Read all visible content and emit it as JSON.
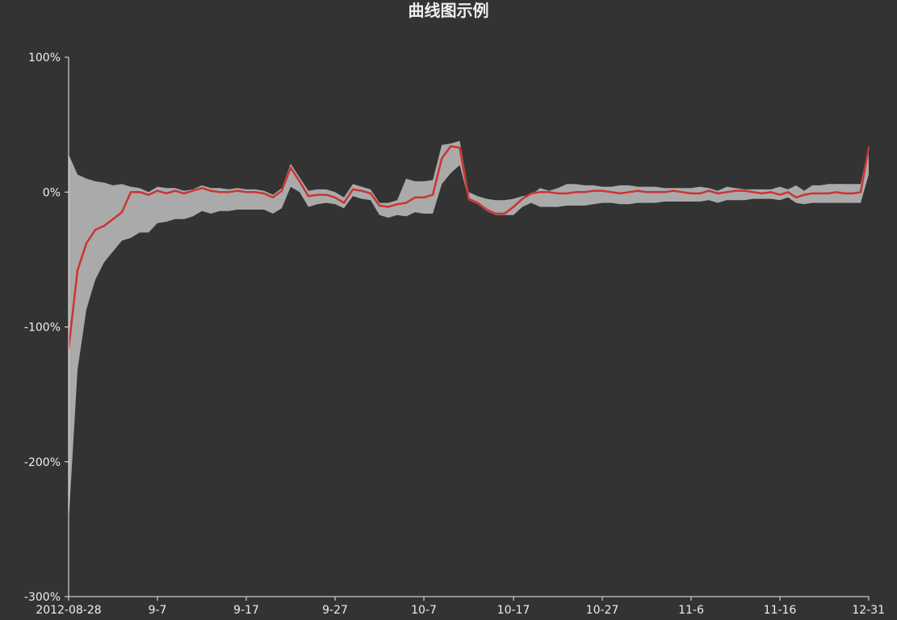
{
  "chart_data": {
    "type": "line",
    "title": "曲线图示例",
    "xlabel": "",
    "ylabel": "",
    "ylim": [
      -300,
      100
    ],
    "y_ticks": [
      100,
      0,
      -100,
      -200,
      -300
    ],
    "y_tick_labels": [
      "100%",
      "0%",
      "-100%",
      "-200%",
      "-300%"
    ],
    "x_range": [
      "2012-08-28",
      "2012-12-31"
    ],
    "x_ticks": [
      "2012-08-28",
      "2012-09-07",
      "2012-09-17",
      "2012-09-27",
      "2012-10-07",
      "2012-10-17",
      "2012-10-27",
      "2012-11-06",
      "2012-11-16",
      "2012-12-31"
    ],
    "x_tick_labels": [
      "2012-08-28",
      "9-7",
      "9-17",
      "9-27",
      "10-7",
      "10-17",
      "10-27",
      "11-6",
      "11-16",
      "12-31"
    ],
    "grid": false,
    "colors": {
      "background": "#333333",
      "line": "#cc3333",
      "band": "#aaaaaa",
      "axis": "#eeeeee",
      "text": "#eeeeee"
    },
    "series": [
      {
        "x": [
          "2012-08-28",
          "2012-08-29",
          "2012-08-30",
          "2012-08-31",
          "2012-09-01",
          "2012-09-02",
          "2012-09-03",
          "2012-09-04",
          "2012-09-05",
          "2012-09-06",
          "2012-09-07",
          "2012-09-08",
          "2012-09-09",
          "2012-09-10",
          "2012-09-11",
          "2012-09-12",
          "2012-09-13",
          "2012-09-14",
          "2012-09-15",
          "2012-09-16",
          "2012-09-17",
          "2012-09-18",
          "2012-09-19",
          "2012-09-20",
          "2012-09-21",
          "2012-09-22",
          "2012-09-23",
          "2012-09-24",
          "2012-09-25",
          "2012-09-26",
          "2012-09-27",
          "2012-09-28",
          "2012-09-29",
          "2012-09-30",
          "2012-10-01",
          "2012-10-02",
          "2012-10-03",
          "2012-10-04",
          "2012-10-05",
          "2012-10-06",
          "2012-10-07",
          "2012-10-08",
          "2012-10-09",
          "2012-10-10",
          "2012-10-11",
          "2012-10-12",
          "2012-10-13",
          "2012-10-14",
          "2012-10-15",
          "2012-10-16",
          "2012-10-17",
          "2012-10-18",
          "2012-10-19",
          "2012-10-20",
          "2012-10-21",
          "2012-10-22",
          "2012-10-23",
          "2012-10-24",
          "2012-10-25",
          "2012-10-26",
          "2012-10-27",
          "2012-10-28",
          "2012-10-29",
          "2012-10-30",
          "2012-10-31",
          "2012-11-01",
          "2012-11-02",
          "2012-11-03",
          "2012-11-04",
          "2012-11-05",
          "2012-11-06",
          "2012-11-07",
          "2012-11-08",
          "2012-11-09",
          "2012-11-10",
          "2012-11-11",
          "2012-11-12",
          "2012-11-13",
          "2012-11-14",
          "2012-11-15",
          "2012-11-16",
          "2012-11-17",
          "2012-11-18",
          "2012-11-19",
          "2012-11-20",
          "2012-11-21",
          "2012-11-22",
          "2012-11-23",
          "2012-11-24",
          "2012-11-25",
          "2012-11-26",
          "2012-12-31"
        ],
        "values": [
          -116,
          -58,
          -38,
          -28,
          -25,
          -20,
          -15,
          0,
          0,
          -2,
          1,
          -1,
          1,
          -1,
          1,
          3,
          1,
          0,
          0,
          1,
          0,
          0,
          -1,
          -4,
          1,
          18,
          8,
          -3,
          -2,
          -2,
          -4,
          -8,
          2,
          1,
          -1,
          -10,
          -11,
          -9,
          -8,
          -4,
          -4,
          -2,
          25,
          34,
          33,
          -5,
          -8,
          -13,
          -16,
          -16,
          -11,
          -5,
          -1,
          0,
          0,
          -1,
          -1,
          0,
          0,
          1,
          1,
          0,
          -1,
          0,
          1,
          0,
          0,
          0,
          1,
          0,
          -1,
          -1,
          1,
          -1,
          0,
          1,
          1,
          0,
          -1,
          0,
          -2,
          0,
          -4,
          -2,
          -1,
          -1,
          -1,
          0,
          -1,
          -1,
          0,
          33
        ]
      },
      {
        "x": [
          "2012-08-28",
          "2012-08-29",
          "2012-08-30",
          "2012-08-31",
          "2012-09-01",
          "2012-09-02",
          "2012-09-03",
          "2012-09-04",
          "2012-09-05",
          "2012-09-06",
          "2012-09-07",
          "2012-09-08",
          "2012-09-09",
          "2012-09-10",
          "2012-09-11",
          "2012-09-12",
          "2012-09-13",
          "2012-09-14",
          "2012-09-15",
          "2012-09-16",
          "2012-09-17",
          "2012-09-18",
          "2012-09-19",
          "2012-09-20",
          "2012-09-21",
          "2012-09-22",
          "2012-09-23",
          "2012-09-24",
          "2012-09-25",
          "2012-09-26",
          "2012-09-27",
          "2012-09-28",
          "2012-09-29",
          "2012-09-30",
          "2012-10-01",
          "2012-10-02",
          "2012-10-03",
          "2012-10-04",
          "2012-10-05",
          "2012-10-06",
          "2012-10-07",
          "2012-10-08",
          "2012-10-09",
          "2012-10-10",
          "2012-10-11",
          "2012-10-12",
          "2012-10-13",
          "2012-10-14",
          "2012-10-15",
          "2012-10-16",
          "2012-10-17",
          "2012-10-18",
          "2012-10-19",
          "2012-10-20",
          "2012-10-21",
          "2012-10-22",
          "2012-10-23",
          "2012-10-24",
          "2012-10-25",
          "2012-10-26",
          "2012-10-27",
          "2012-10-28",
          "2012-10-29",
          "2012-10-30",
          "2012-10-31",
          "2012-11-01",
          "2012-11-02",
          "2012-11-03",
          "2012-11-04",
          "2012-11-05",
          "2012-11-06",
          "2012-11-07",
          "2012-11-08",
          "2012-11-09",
          "2012-11-10",
          "2012-11-11",
          "2012-11-12",
          "2012-11-13",
          "2012-11-14",
          "2012-11-15",
          "2012-11-16",
          "2012-11-17",
          "2012-11-18",
          "2012-11-19",
          "2012-11-20",
          "2012-11-21",
          "2012-11-22",
          "2012-11-23",
          "2012-11-24",
          "2012-11-25",
          "2012-11-26",
          "2012-12-31"
        ],
        "values": [
          28,
          13,
          10,
          8,
          7,
          5,
          6,
          4,
          3,
          0,
          4,
          3,
          3,
          1,
          2,
          5,
          3,
          3,
          2,
          3,
          2,
          2,
          1,
          -2,
          3,
          21,
          11,
          1,
          2,
          2,
          0,
          -4,
          6,
          4,
          2,
          -8,
          -8,
          -6,
          10,
          8,
          8,
          9,
          35,
          36,
          38,
          0,
          -3,
          -5,
          -6,
          -6,
          -5,
          -3,
          -2,
          3,
          1,
          3,
          6,
          6,
          5,
          5,
          4,
          4,
          5,
          5,
          4,
          4,
          4,
          3,
          3,
          3,
          3,
          4,
          3,
          1,
          4,
          3,
          2,
          2,
          2,
          2,
          4,
          2,
          5,
          1,
          5,
          5,
          6,
          6,
          6,
          6,
          6,
          35
        ]
      },
      {
        "x": [
          "2012-08-28",
          "2012-08-29",
          "2012-08-30",
          "2012-08-31",
          "2012-09-01",
          "2012-09-02",
          "2012-09-03",
          "2012-09-04",
          "2012-09-05",
          "2012-09-06",
          "2012-09-07",
          "2012-09-08",
          "2012-09-09",
          "2012-09-10",
          "2012-09-11",
          "2012-09-12",
          "2012-09-13",
          "2012-09-14",
          "2012-09-15",
          "2012-09-16",
          "2012-09-17",
          "2012-09-18",
          "2012-09-19",
          "2012-09-20",
          "2012-09-21",
          "2012-09-22",
          "2012-09-23",
          "2012-09-24",
          "2012-09-25",
          "2012-09-26",
          "2012-09-27",
          "2012-09-28",
          "2012-09-29",
          "2012-09-30",
          "2012-10-01",
          "2012-10-02",
          "2012-10-03",
          "2012-10-04",
          "2012-10-05",
          "2012-10-06",
          "2012-10-07",
          "2012-10-08",
          "2012-10-09",
          "2012-10-10",
          "2012-10-11",
          "2012-10-12",
          "2012-10-13",
          "2012-10-14",
          "2012-10-15",
          "2012-10-16",
          "2012-10-17",
          "2012-10-18",
          "2012-10-19",
          "2012-10-20",
          "2012-10-21",
          "2012-10-22",
          "2012-10-23",
          "2012-10-24",
          "2012-10-25",
          "2012-10-26",
          "2012-10-27",
          "2012-10-28",
          "2012-10-29",
          "2012-10-30",
          "2012-10-31",
          "2012-11-01",
          "2012-11-02",
          "2012-11-03",
          "2012-11-04",
          "2012-11-05",
          "2012-11-06",
          "2012-11-07",
          "2012-11-08",
          "2012-11-09",
          "2012-11-10",
          "2012-11-11",
          "2012-11-12",
          "2012-11-13",
          "2012-11-14",
          "2012-11-15",
          "2012-11-16",
          "2012-11-17",
          "2012-11-18",
          "2012-11-19",
          "2012-11-20",
          "2012-11-21",
          "2012-11-22",
          "2012-11-23",
          "2012-11-24",
          "2012-11-25",
          "2012-11-26",
          "2012-12-31"
        ],
        "values": [
          -245,
          -132,
          -87,
          -65,
          -52,
          -44,
          -36,
          -34,
          -30,
          -30,
          -23,
          -22,
          -20,
          -20,
          -18,
          -14,
          -16,
          -14,
          -14,
          -13,
          -13,
          -13,
          -13,
          -16,
          -12,
          4,
          0,
          -11,
          -9,
          -8,
          -9,
          -12,
          -3,
          -5,
          -6,
          -17,
          -19,
          -17,
          -18,
          -15,
          -16,
          -16,
          6,
          14,
          20,
          -6,
          -9,
          -14,
          -17,
          -17,
          -17,
          -11,
          -8,
          -11,
          -11,
          -11,
          -10,
          -10,
          -10,
          -9,
          -8,
          -8,
          -9,
          -9,
          -8,
          -8,
          -8,
          -7,
          -7,
          -7,
          -7,
          -7,
          -6,
          -8,
          -6,
          -6,
          -6,
          -5,
          -5,
          -5,
          -6,
          -4,
          -8,
          -9,
          -8,
          -8,
          -8,
          -8,
          -8,
          -8,
          -8,
          13
        ]
      }
    ]
  }
}
